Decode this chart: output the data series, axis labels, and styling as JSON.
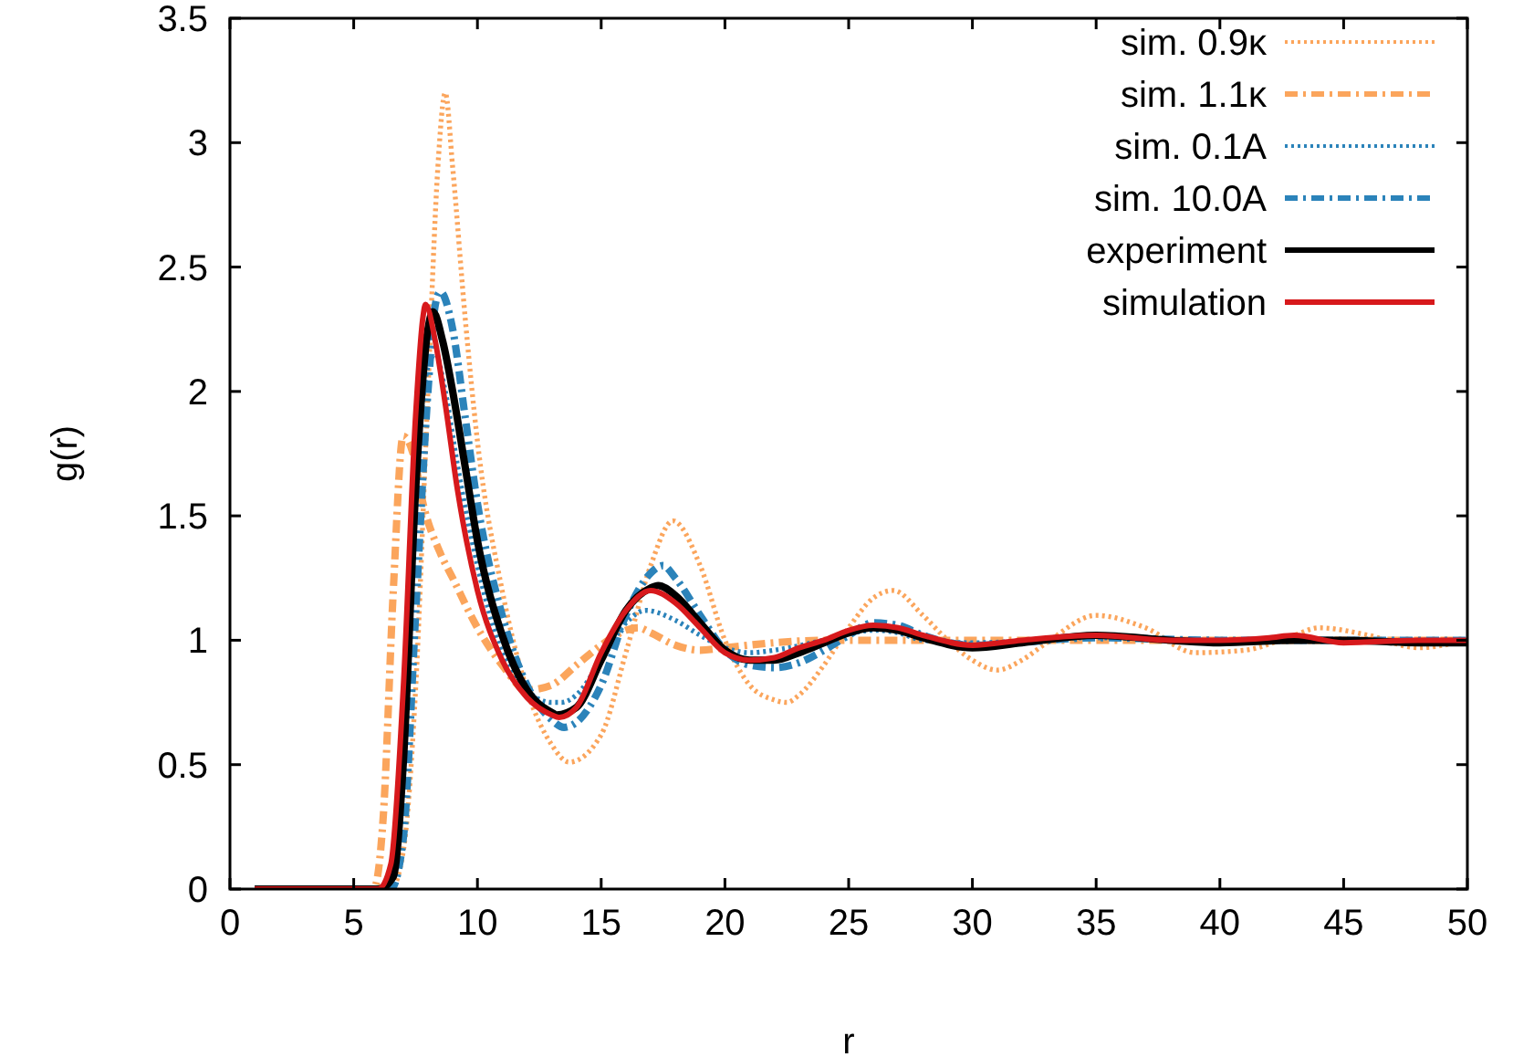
{
  "chart_data": {
    "type": "line",
    "xlabel": "r",
    "ylabel": "g(r)",
    "xlim": [
      0,
      50
    ],
    "ylim": [
      0,
      3.5
    ],
    "xticks": [
      0,
      5,
      10,
      15,
      20,
      25,
      30,
      35,
      40,
      45,
      50
    ],
    "yticks": [
      0,
      0.5,
      1,
      1.5,
      2,
      2.5,
      3,
      3.5
    ],
    "grid": false,
    "legend": "top right",
    "series": [
      {
        "name": "sim. 0.9κ",
        "color": "#fba55c",
        "line_style": "dotted",
        "x": [
          1,
          6.5,
          7,
          7.5,
          8,
          8.4,
          8.7,
          9,
          9.5,
          10,
          11,
          12,
          13,
          13.7,
          15,
          16,
          17,
          17.9,
          19,
          20,
          21,
          22,
          22.5,
          23,
          24,
          25,
          26,
          26.8,
          28,
          29,
          30,
          31,
          32,
          33,
          35,
          37,
          39,
          41,
          43,
          44,
          46,
          48,
          50
        ],
        "values": [
          0,
          0,
          0.15,
          0.8,
          2.0,
          2.9,
          3.2,
          2.9,
          2.3,
          1.8,
          1.2,
          0.8,
          0.58,
          0.51,
          0.62,
          0.95,
          1.3,
          1.48,
          1.3,
          1.0,
          0.82,
          0.76,
          0.75,
          0.78,
          0.9,
          1.05,
          1.17,
          1.2,
          1.1,
          1.0,
          0.92,
          0.88,
          0.92,
          0.99,
          1.1,
          1.05,
          0.95,
          0.96,
          1.02,
          1.05,
          1.02,
          0.97,
          1.0
        ]
      },
      {
        "name": "sim. 1.1κ",
        "color": "#fba55c",
        "line_style": "dashdot",
        "x": [
          1,
          5.8,
          6.2,
          6.6,
          7.0,
          7.4,
          7.8,
          8.5,
          9,
          10,
          11,
          12,
          13,
          14,
          15,
          16,
          16.5,
          17,
          18,
          19,
          20,
          22,
          24,
          26,
          28,
          30,
          35,
          40,
          45,
          50
        ],
        "values": [
          0,
          0,
          0.3,
          1.2,
          1.82,
          1.75,
          1.55,
          1.35,
          1.25,
          1.05,
          0.9,
          0.8,
          0.82,
          0.9,
          0.98,
          1.04,
          1.05,
          1.03,
          0.98,
          0.96,
          0.97,
          0.99,
          1.0,
          1.0,
          1.0,
          1.0,
          1.0,
          1.0,
          1.0,
          1.0
        ]
      },
      {
        "name": "sim. 0.1A",
        "color": "#2b83ba",
        "line_style": "dotted",
        "x": [
          1,
          6.2,
          6.6,
          7,
          7.5,
          8,
          8.3,
          8.7,
          9.2,
          10,
          11,
          12,
          13,
          13.4,
          14,
          15,
          16,
          16.8,
          18,
          19,
          20,
          21,
          22,
          24,
          26,
          27,
          28,
          30,
          35,
          40,
          45,
          50
        ],
        "values": [
          0,
          0,
          0.1,
          0.7,
          1.6,
          2.1,
          2.15,
          2.0,
          1.7,
          1.3,
          0.95,
          0.8,
          0.75,
          0.75,
          0.78,
          0.92,
          1.07,
          1.12,
          1.08,
          1.02,
          0.97,
          0.95,
          0.96,
          1.0,
          1.04,
          1.03,
          1.0,
          0.99,
          1.01,
          1.0,
          1.0,
          1.0
        ]
      },
      {
        "name": "sim. 10.0A",
        "color": "#2b83ba",
        "line_style": "dashdot",
        "x": [
          1,
          6.5,
          7,
          7.5,
          8,
          8.3,
          8.5,
          9,
          9.5,
          10,
          11,
          12,
          13,
          13.5,
          14,
          15,
          16,
          17,
          17.5,
          18,
          19,
          20,
          21,
          22,
          23,
          24,
          25,
          26,
          27,
          28,
          30,
          35,
          40,
          45,
          50
        ],
        "values": [
          0,
          0,
          0.2,
          1.1,
          2.0,
          2.35,
          2.4,
          2.25,
          1.9,
          1.55,
          1.1,
          0.82,
          0.68,
          0.65,
          0.67,
          0.82,
          1.1,
          1.27,
          1.3,
          1.25,
          1.1,
          0.96,
          0.9,
          0.89,
          0.91,
          0.96,
          1.02,
          1.07,
          1.06,
          1.02,
          0.98,
          1.01,
          1.0,
          1.0,
          1.0
        ]
      },
      {
        "name": "experiment",
        "color": "#000000",
        "line_style": "solid",
        "x": [
          1,
          6,
          6.6,
          7,
          7.5,
          8,
          8.2,
          8.6,
          9,
          9.5,
          10,
          11,
          12,
          13,
          13.2,
          14,
          15,
          16,
          17,
          17.3,
          18,
          19,
          20,
          21,
          22,
          23,
          24,
          25,
          26,
          27,
          28,
          30,
          32,
          35,
          38,
          40,
          43,
          45,
          48,
          50
        ],
        "values": [
          0,
          0,
          0.05,
          0.5,
          1.6,
          2.25,
          2.32,
          2.2,
          2.0,
          1.7,
          1.4,
          1.02,
          0.8,
          0.71,
          0.7,
          0.73,
          0.92,
          1.12,
          1.21,
          1.22,
          1.18,
          1.07,
          0.96,
          0.92,
          0.92,
          0.95,
          0.99,
          1.03,
          1.05,
          1.04,
          1.01,
          0.97,
          0.99,
          1.02,
          1.0,
          0.99,
          1.0,
          1.0,
          0.99,
          0.99
        ]
      },
      {
        "name": "simulation",
        "color": "#d7191c",
        "line_style": "solid",
        "x": [
          1,
          6,
          6.5,
          7,
          7.5,
          7.8,
          7.9,
          8.3,
          8.7,
          9.2,
          10,
          11,
          12,
          13,
          13.3,
          14,
          15,
          16,
          17,
          18,
          19,
          20,
          21,
          22,
          23,
          24,
          25,
          26,
          27,
          28,
          30,
          32,
          35,
          38,
          40,
          42,
          43,
          45,
          48,
          50
        ],
        "values": [
          0,
          0,
          0.1,
          0.8,
          1.9,
          2.3,
          2.35,
          2.2,
          1.95,
          1.6,
          1.2,
          0.92,
          0.77,
          0.7,
          0.69,
          0.73,
          0.95,
          1.12,
          1.2,
          1.15,
          1.05,
          0.95,
          0.92,
          0.93,
          0.97,
          1.0,
          1.04,
          1.06,
          1.05,
          1.02,
          0.98,
          1.0,
          1.02,
          1.0,
          1.0,
          1.01,
          1.02,
          0.99,
          1.0,
          1.0
        ]
      }
    ]
  }
}
